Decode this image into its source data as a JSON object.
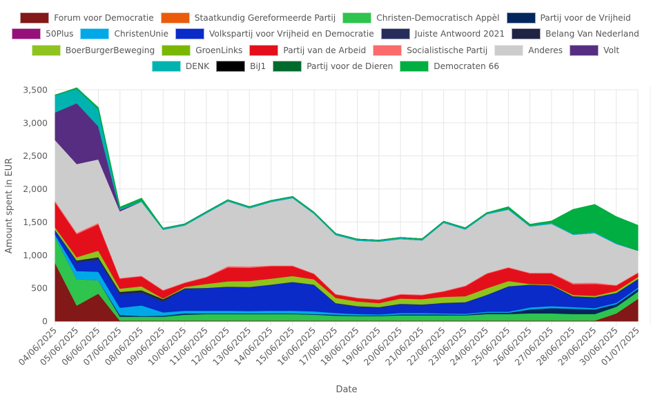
{
  "chart_data": {
    "type": "area",
    "stacked": true,
    "title": "",
    "xlabel": "Date",
    "ylabel": "Amount spent in EUR",
    "ylim": [
      0,
      3500
    ],
    "yticks": [
      0,
      500,
      1000,
      1500,
      2000,
      2500,
      3000,
      3500
    ],
    "ytick_labels": [
      "0",
      "500",
      "1,000",
      "1,500",
      "2,000",
      "2,500",
      "3,000",
      "3,500"
    ],
    "grid": true,
    "legend_position": "top",
    "categories": [
      "04/06/2025",
      "05/06/2025",
      "06/06/2025",
      "07/06/2025",
      "08/06/2025",
      "09/06/2025",
      "10/06/2025",
      "11/06/2025",
      "12/06/2025",
      "13/06/2025",
      "14/06/2025",
      "15/06/2025",
      "16/06/2025",
      "17/06/2025",
      "18/06/2025",
      "19/06/2025",
      "20/06/2025",
      "21/06/2025",
      "22/06/2025",
      "23/06/2025",
      "24/06/2025",
      "25/06/2025",
      "26/06/2025",
      "27/06/2025",
      "28/06/2025",
      "29/06/2025",
      "30/06/2025",
      "01/07/2025"
    ],
    "series": [
      {
        "name": "Forum voor Democratie",
        "color": "#821818",
        "values": [
          880,
          240,
          420,
          10,
          10,
          10,
          10,
          10,
          10,
          10,
          10,
          10,
          10,
          10,
          10,
          10,
          10,
          10,
          10,
          10,
          10,
          10,
          10,
          10,
          10,
          10,
          120,
          340
        ]
      },
      {
        "name": "Staatkundig Gereformeerde Partij",
        "color": "#ea5b0c",
        "values": [
          0,
          0,
          0,
          0,
          0,
          0,
          0,
          0,
          0,
          0,
          0,
          0,
          0,
          0,
          0,
          0,
          0,
          0,
          0,
          0,
          0,
          0,
          0,
          0,
          0,
          0,
          0,
          0
        ]
      },
      {
        "name": "Christen-Democratisch Appèl",
        "color": "#2ec44e",
        "values": [
          400,
          400,
          200,
          60,
          60,
          60,
          90,
          100,
          100,
          100,
          100,
          100,
          90,
          75,
          70,
          70,
          80,
          80,
          80,
          80,
          100,
          100,
          110,
          110,
          100,
          100,
          100,
          110
        ]
      },
      {
        "name": "Partij voor de Vrijheid",
        "color": "#03275c",
        "values": [
          0,
          0,
          0,
          25,
          10,
          15,
          20,
          10,
          10,
          10,
          10,
          10,
          10,
          15,
          10,
          10,
          15,
          15,
          15,
          10,
          20,
          20,
          60,
          80,
          80,
          70,
          40,
          40
        ]
      },
      {
        "name": "50Plus",
        "color": "#951179",
        "values": [
          0,
          0,
          0,
          0,
          0,
          0,
          0,
          0,
          0,
          0,
          0,
          0,
          0,
          0,
          0,
          0,
          0,
          0,
          0,
          0,
          0,
          0,
          0,
          0,
          0,
          0,
          0,
          0
        ]
      },
      {
        "name": "ChristenUnie",
        "color": "#01a8e8",
        "values": [
          30,
          120,
          130,
          110,
          160,
          50,
          40,
          40,
          40,
          35,
          40,
          40,
          40,
          25,
          20,
          15,
          20,
          20,
          15,
          15,
          15,
          15,
          30,
          30,
          25,
          20,
          20,
          20
        ]
      },
      {
        "name": "Volkspartij voor Vrijheid en Democratie",
        "color": "#0a2bc7",
        "values": [
          70,
          130,
          180,
          200,
          190,
          160,
          330,
          340,
          360,
          360,
          390,
          430,
          400,
          140,
          110,
          100,
          130,
          120,
          150,
          170,
          250,
          380,
          340,
          310,
          150,
          150,
          140,
          120
        ]
      },
      {
        "name": "Juiste Antwoord 2021",
        "color": "#262d5b",
        "values": [
          0,
          20,
          20,
          20,
          20,
          20,
          10,
          5,
          5,
          5,
          5,
          5,
          5,
          10,
          10,
          10,
          10,
          10,
          10,
          5,
          5,
          5,
          5,
          5,
          15,
          15,
          10,
          10
        ]
      },
      {
        "name": "Belang Van Nederland",
        "color": "#1f2444",
        "values": [
          0,
          10,
          20,
          20,
          20,
          20,
          0,
          0,
          0,
          0,
          0,
          0,
          0,
          0,
          0,
          0,
          0,
          0,
          0,
          0,
          0,
          0,
          0,
          0,
          0,
          0,
          0,
          0
        ]
      },
      {
        "name": "BoerBurgerBeweging",
        "color": "#8fc31e",
        "values": [
          40,
          50,
          100,
          50,
          60,
          10,
          20,
          60,
          80,
          90,
          90,
          90,
          80,
          80,
          70,
          60,
          80,
          80,
          90,
          90,
          100,
          80,
          10,
          10,
          20,
          20,
          30,
          30
        ]
      },
      {
        "name": "GroenLinks",
        "color": "#7ab800",
        "values": [
          0,
          0,
          0,
          0,
          0,
          0,
          0,
          0,
          0,
          0,
          0,
          0,
          0,
          0,
          0,
          0,
          0,
          0,
          0,
          0,
          0,
          0,
          0,
          0,
          0,
          0,
          0,
          0
        ]
      },
      {
        "name": "Partij van de Arbeid",
        "color": "#e3101b",
        "values": [
          380,
          350,
          400,
          150,
          150,
          120,
          60,
          100,
          210,
          200,
          190,
          150,
          80,
          50,
          50,
          50,
          60,
          60,
          80,
          150,
          220,
          200,
          160,
          170,
          160,
          180,
          80,
          60
        ]
      },
      {
        "name": "Socialistische Partij",
        "color": "#fb6b6b",
        "values": [
          20,
          20,
          20,
          10,
          10,
          10,
          10,
          10,
          20,
          20,
          10,
          10,
          10,
          10,
          10,
          10,
          10,
          10,
          10,
          10,
          10,
          10,
          10,
          10,
          20,
          20,
          10,
          10
        ]
      },
      {
        "name": "Anderes",
        "color": "#cccccc",
        "values": [
          920,
          1040,
          960,
          1010,
          1120,
          910,
          860,
          960,
          980,
          880,
          960,
          1020,
          900,
          890,
          860,
          870,
          830,
          820,
          1030,
          850,
          890,
          870,
          700,
          740,
          730,
          750,
          620,
          330
        ]
      },
      {
        "name": "Volt",
        "color": "#572d82",
        "values": [
          420,
          920,
          500,
          20,
          0,
          0,
          0,
          0,
          0,
          0,
          0,
          0,
          0,
          0,
          0,
          0,
          0,
          0,
          0,
          0,
          0,
          0,
          0,
          0,
          0,
          0,
          0,
          0
        ]
      },
      {
        "name": "DENK",
        "color": "#00b3b0",
        "values": [
          260,
          220,
          260,
          20,
          20,
          20,
          20,
          20,
          20,
          20,
          20,
          20,
          20,
          20,
          20,
          20,
          20,
          20,
          20,
          20,
          20,
          20,
          20,
          20,
          20,
          20,
          20,
          0
        ]
      },
      {
        "name": "BiJ1",
        "color": "#000000",
        "values": [
          0,
          0,
          0,
          0,
          0,
          0,
          0,
          0,
          0,
          0,
          0,
          0,
          0,
          0,
          0,
          0,
          0,
          0,
          0,
          0,
          0,
          0,
          0,
          0,
          0,
          0,
          0,
          0
        ]
      },
      {
        "name": "Partij voor de Dieren",
        "color": "#006b2d",
        "values": [
          0,
          0,
          0,
          0,
          0,
          0,
          0,
          0,
          0,
          0,
          0,
          0,
          0,
          0,
          0,
          0,
          0,
          0,
          0,
          0,
          0,
          0,
          0,
          0,
          0,
          0,
          0,
          0
        ]
      },
      {
        "name": "Democraten 66",
        "color": "#00ae41",
        "values": [
          0,
          10,
          20,
          20,
          30,
          0,
          0,
          0,
          0,
          0,
          0,
          0,
          0,
          0,
          0,
          0,
          0,
          0,
          0,
          0,
          0,
          20,
          10,
          20,
          360,
          410,
          390,
          380
        ]
      }
    ]
  },
  "legend": {
    "rows": [
      [
        0,
        1,
        2,
        3
      ],
      [
        4,
        5,
        6,
        7,
        8
      ],
      [
        9,
        10,
        11,
        12,
        13,
        14
      ],
      [
        15,
        16,
        17,
        18
      ]
    ]
  }
}
